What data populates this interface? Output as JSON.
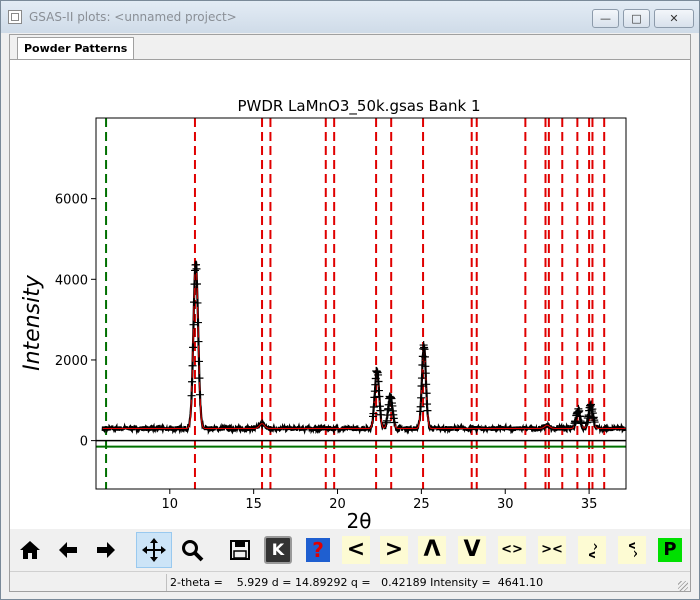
{
  "window": {
    "title": "GSAS-II plots: <unnamed project>",
    "minimize_glyph": "—",
    "maximize_glyph": "□",
    "close_glyph": "✕"
  },
  "tabs": [
    {
      "label": "Powder Patterns",
      "active": true
    }
  ],
  "toolbar": {
    "home_icon": "home-icon",
    "back_icon": "back-arrow-icon",
    "forward_icon": "forward-arrow-icon",
    "pan_icon": "pan-icon",
    "zoom_icon": "zoom-icon",
    "save_icon": "save-icon",
    "key_label": "K",
    "help_label": "?",
    "shift_left_label": "<",
    "shift_right_label": ">",
    "scale_up_label": "Λ",
    "scale_down_label": "V",
    "expand_label": "<>",
    "contract_label": "><",
    "v_expand_label": "^v",
    "v_contract_label": "v^",
    "publish_label": "P"
  },
  "status": {
    "text": "2-theta =    5.929 d = 14.89292 q =   0.42189 Intensity =  4641.10"
  },
  "colors": {
    "reflection_line": "#e00000",
    "background_line": "#007000",
    "observed_marker": "#000000",
    "publish_bg": "#00e000",
    "help_bg": "#1f5fd0"
  },
  "chart_data": {
    "type": "scatter",
    "title": "PWDR LaMnO3_50k.gsas Bank 1",
    "xlabel": "2θ",
    "ylabel": "Intensity",
    "xlim": [
      5.6,
      37.2
    ],
    "ylim": [
      -1200,
      8000
    ],
    "x_ticks": [
      10,
      15,
      20,
      25,
      30,
      35
    ],
    "y_ticks": [
      0,
      2000,
      4000,
      6000
    ],
    "grid": false,
    "baseline": 300,
    "noise": 60,
    "zero_line": 0,
    "difference_line": -150,
    "excluded_region_marker": 6.2,
    "reflection_positions": [
      11.5,
      15.5,
      16.0,
      19.3,
      19.8,
      22.3,
      23.2,
      25.1,
      28.0,
      28.3,
      31.2,
      32.4,
      32.6,
      33.4,
      34.3,
      35.0,
      35.2,
      35.9
    ],
    "peaks": [
      {
        "pos": 11.55,
        "height": 4100,
        "width": 0.14
      },
      {
        "pos": 15.5,
        "height": 120,
        "width": 0.15
      },
      {
        "pos": 22.35,
        "height": 1450,
        "width": 0.13
      },
      {
        "pos": 23.15,
        "height": 800,
        "width": 0.13
      },
      {
        "pos": 25.15,
        "height": 2050,
        "width": 0.12
      },
      {
        "pos": 32.5,
        "height": 80,
        "width": 0.15
      },
      {
        "pos": 34.35,
        "height": 450,
        "width": 0.12
      },
      {
        "pos": 35.1,
        "height": 550,
        "width": 0.13
      }
    ]
  }
}
